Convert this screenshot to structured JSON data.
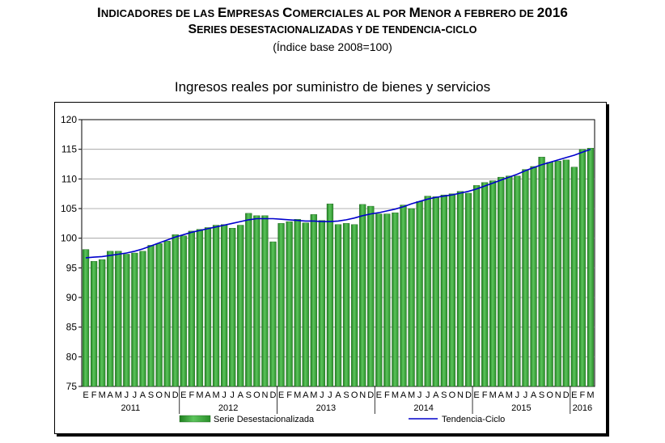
{
  "header": {
    "title_line1_parts": [
      {
        "t": "I",
        "big": true
      },
      {
        "t": "NDICADORES DE LAS ",
        "big": false
      },
      {
        "t": "E",
        "big": true
      },
      {
        "t": "MPRESAS ",
        "big": false
      },
      {
        "t": "C",
        "big": true
      },
      {
        "t": "OMERCIALES AL POR ",
        "big": false
      },
      {
        "t": "M",
        "big": true
      },
      {
        "t": "ENOR A FEBRERO DE ",
        "big": false
      },
      {
        "t": "2016",
        "big": true
      }
    ],
    "title_line2_parts": [
      {
        "t": "S",
        "big": true
      },
      {
        "t": "ERIES DESESTACIONALIZADAS Y DE TENDENCIA",
        "big": false
      },
      {
        "t": "-",
        "big": true
      },
      {
        "t": "CICLO",
        "big": false
      }
    ],
    "title_line3": "(Índice base 2008=100)"
  },
  "chart_data": {
    "type": "bar",
    "title": "Ingresos reales por suministro de bienes y servicios",
    "ylim": [
      75,
      120
    ],
    "yticks": [
      75,
      80,
      85,
      90,
      95,
      100,
      105,
      110,
      115,
      120
    ],
    "month_labels": [
      "E",
      "F",
      "M",
      "A",
      "M",
      "J",
      "J",
      "A",
      "S",
      "O",
      "N",
      "D"
    ],
    "years": [
      "2011",
      "2012",
      "2013",
      "2014",
      "2015",
      "2016"
    ],
    "grid": true,
    "legend_position": "bottom",
    "series": [
      {
        "name": "Serie Desestacionalizada",
        "kind": "bar",
        "color": "#3aa83a",
        "values": [
          98.1,
          96.1,
          96.4,
          97.8,
          97.8,
          97.3,
          97.5,
          97.8,
          98.8,
          99.1,
          99.5,
          100.6,
          100.4,
          101.2,
          101.5,
          101.8,
          102.2,
          102.3,
          101.7,
          102.2,
          104.2,
          103.8,
          103.8,
          99.4,
          102.5,
          102.8,
          103.2,
          102.6,
          104.0,
          103.0,
          105.8,
          102.3,
          102.5,
          102.3,
          105.7,
          105.4,
          104.1,
          104.1,
          104.3,
          105.6,
          105.0,
          106.2,
          107.1,
          107.0,
          107.3,
          107.5,
          107.9,
          107.6,
          108.9,
          109.4,
          109.7,
          110.3,
          110.5,
          110.5,
          111.6,
          112.1,
          113.7,
          112.8,
          113.0,
          113.2,
          112.0,
          115.0,
          115.2
        ]
      },
      {
        "name": "Tendencia-Ciclo",
        "kind": "line",
        "color": "#0000cc",
        "values": [
          96.7,
          96.8,
          96.9,
          97.1,
          97.3,
          97.5,
          97.8,
          98.2,
          98.7,
          99.2,
          99.7,
          100.2,
          100.6,
          101.0,
          101.3,
          101.6,
          101.9,
          102.2,
          102.5,
          102.8,
          103.1,
          103.3,
          103.3,
          103.3,
          103.2,
          103.1,
          103.0,
          102.9,
          102.9,
          102.8,
          102.8,
          102.9,
          103.1,
          103.4,
          103.8,
          104.1,
          104.3,
          104.6,
          104.9,
          105.3,
          105.8,
          106.2,
          106.6,
          106.9,
          107.1,
          107.3,
          107.6,
          107.9,
          108.3,
          108.8,
          109.3,
          109.8,
          110.3,
          110.8,
          111.4,
          111.9,
          112.4,
          112.8,
          113.2,
          113.6,
          114.0,
          114.5,
          115.0
        ]
      }
    ]
  }
}
